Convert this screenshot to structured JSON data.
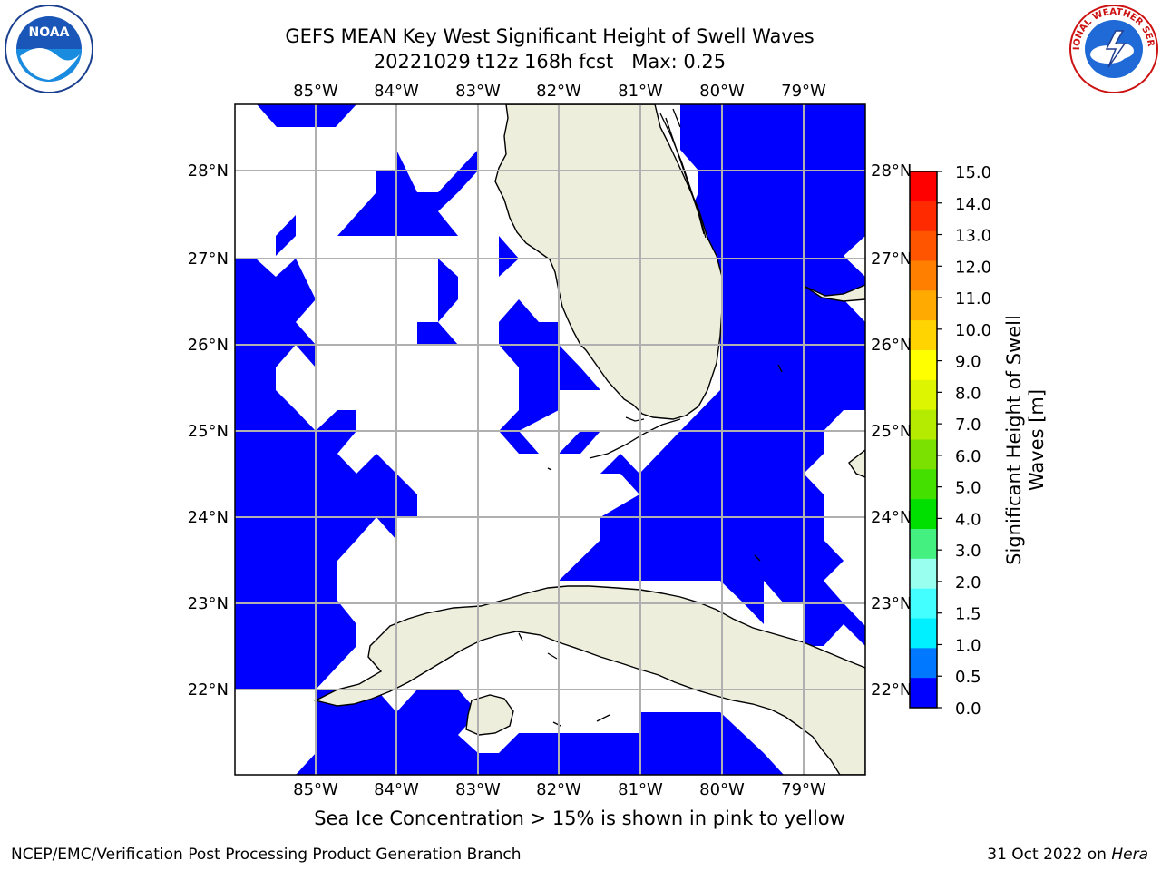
{
  "title": {
    "line1": "GEFS MEAN Key West Significant Height of Swell Waves",
    "line2": "20221029 t12z 168h fcst   Max: 0.25"
  },
  "map": {
    "lon_labels": [
      "85°W",
      "84°W",
      "83°W",
      "82°W",
      "81°W",
      "80°W",
      "79°W"
    ],
    "lat_labels": [
      "28°N",
      "27°N",
      "26°N",
      "25°N",
      "24°N",
      "23°N",
      "22°N"
    ],
    "ocean_fill_color": "#0000ff",
    "land_color": "#eeeedd"
  },
  "colorbar": {
    "label_line1": "Significant Height of Swell",
    "label_line2": "Waves [m]",
    "ticks": [
      "15.0",
      "14.0",
      "13.0",
      "12.0",
      "11.0",
      "10.0",
      "9.0",
      "8.0",
      "7.0",
      "6.0",
      "5.0",
      "4.0",
      "3.0",
      "2.0",
      "1.5",
      "1.0",
      "0.5",
      "0.0"
    ],
    "colors": [
      "#ff0000",
      "#ff2a00",
      "#ff5500",
      "#ff8000",
      "#ffaa00",
      "#ffd400",
      "#ffff00",
      "#ddf500",
      "#b4eb00",
      "#7ae100",
      "#44e000",
      "#00e000",
      "#44f080",
      "#99ffee",
      "#44ffff",
      "#00f0ff",
      "#0078ff",
      "#0000ff"
    ]
  },
  "note": "Sea Ice Concentration > 15% is shown in pink to yellow",
  "footer": {
    "left": "NCEP/EMC/Verification Post Processing Product Generation Branch",
    "date": "31 Oct 2022 on ",
    "host": "Hera"
  },
  "logos": {
    "noaa_text": "NOAA",
    "nws_text": "NATIONAL WEATHER SERVICE"
  }
}
